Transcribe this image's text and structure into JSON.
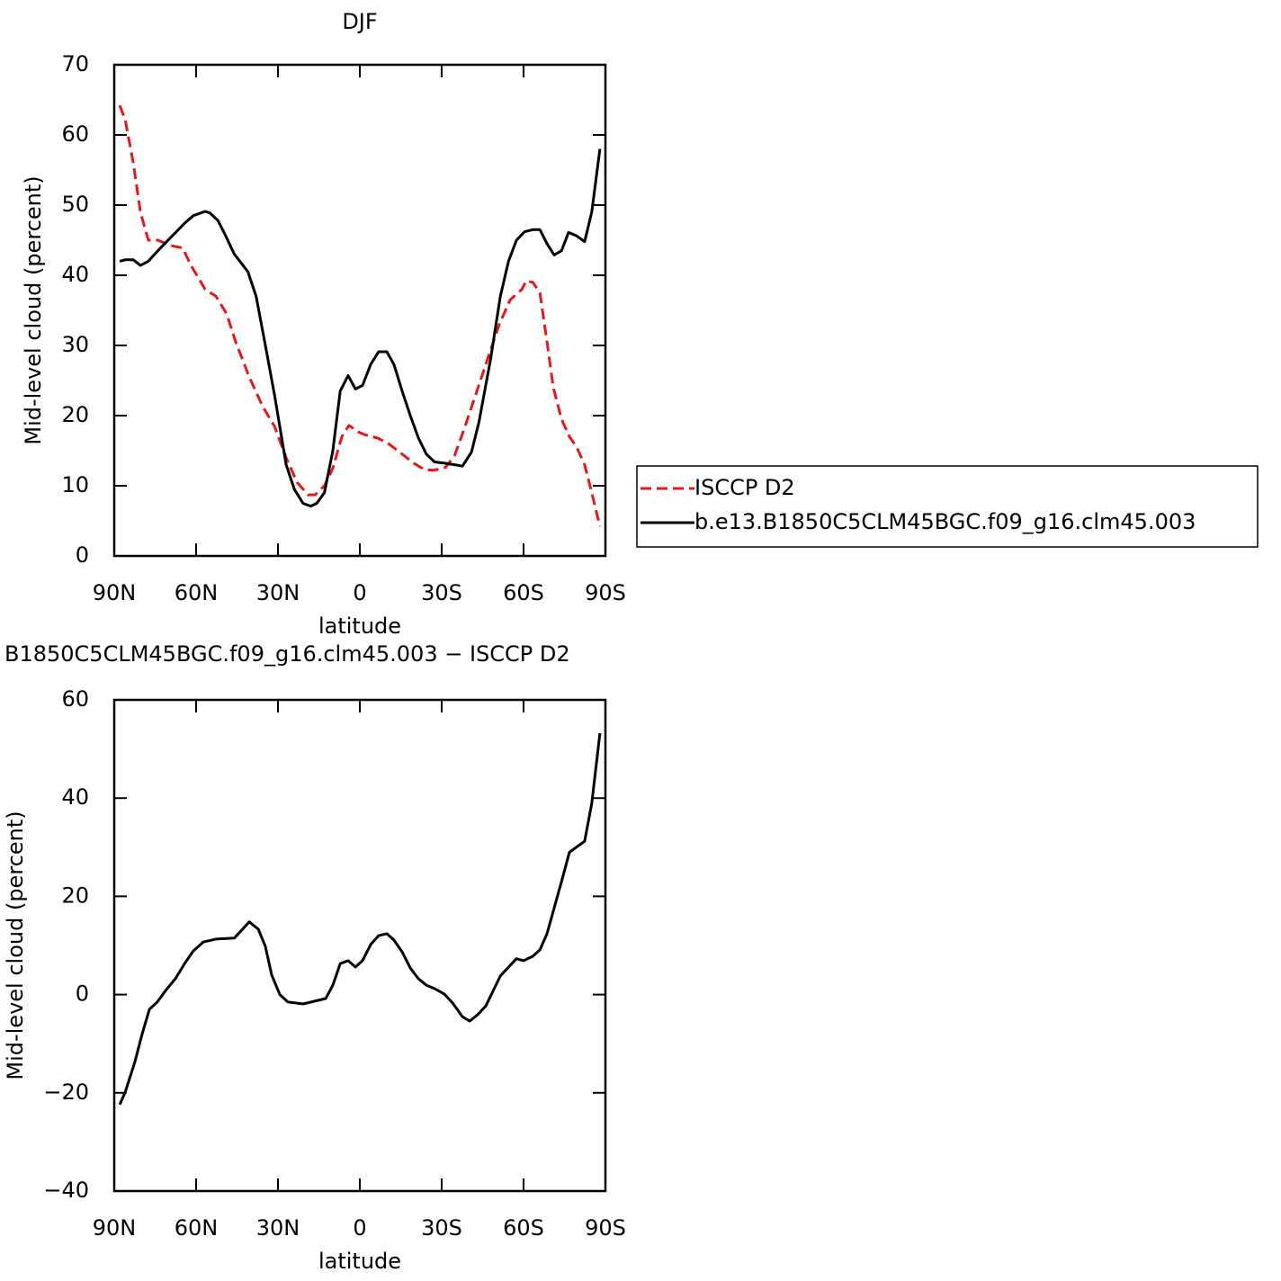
{
  "chart_data": [
    {
      "type": "line",
      "title": "DJF",
      "xlabel": "latitude",
      "ylabel": "Mid-level cloud (percent)",
      "xlim": [
        90,
        -90
      ],
      "ylim": [
        0,
        70
      ],
      "xticks": [
        {
          "value": 90,
          "label": "90N"
        },
        {
          "value": 60,
          "label": "60N"
        },
        {
          "value": 30,
          "label": "30N"
        },
        0,
        {
          "value": -30,
          "label": "30S"
        },
        {
          "value": -60,
          "label": "60S"
        },
        {
          "value": -90,
          "label": "90S"
        }
      ],
      "yticks": [
        0,
        10,
        20,
        30,
        40,
        50,
        60,
        70
      ],
      "legend": "outside-right",
      "series": [
        {
          "name": "ISCCP D2",
          "color": "#e31a1c",
          "style": "dashed",
          "x": [
            88,
            86,
            83,
            80.4,
            77.5,
            74,
            69,
            64.9,
            62,
            56.7,
            52.7,
            48.8,
            45.5,
            40.5,
            35.6,
            31.3,
            27,
            23,
            19,
            16.4,
            13,
            9.9,
            6.6,
            4,
            0.7,
            -1.6,
            -6.6,
            -10.5,
            -15.2,
            -19.8,
            -23.7,
            -27,
            -31.4,
            -34.7,
            -38.6,
            -42.9,
            -47.2,
            -51.1,
            -55.1,
            -59.4,
            -61,
            -63.4,
            -66,
            -68.6,
            -70.9,
            -73.9,
            -76.8,
            -79.5,
            -82.4,
            -85,
            -88
          ],
          "values": [
            64.2,
            62.2,
            56,
            49,
            45,
            45,
            44.2,
            43.9,
            41.5,
            38,
            37,
            34.5,
            30.5,
            25.5,
            21.3,
            18.5,
            14,
            10.5,
            8.7,
            8.7,
            10,
            12.5,
            17,
            18.6,
            17.7,
            17.3,
            16.8,
            16,
            14.6,
            13.2,
            12.3,
            12.2,
            12.6,
            14.3,
            18.5,
            23.5,
            28.5,
            33,
            36.5,
            38,
            39.2,
            39,
            37.5,
            30.5,
            24,
            19.5,
            17,
            15.5,
            13,
            9,
            4.2
          ]
        },
        {
          "name": "b.e13.B1850C5CLM45BGC.f09_g16.clm45.003",
          "color": "#000000",
          "style": "solid",
          "x": [
            88,
            86,
            83,
            80.4,
            77.5,
            74,
            69,
            64,
            61,
            56.7,
            55,
            52,
            49.4,
            46,
            41,
            38,
            34.6,
            31.3,
            27,
            24,
            20.8,
            18,
            15.8,
            13,
            9.9,
            7.2,
            4.3,
            1.6,
            -1,
            -4,
            -6.9,
            -9.9,
            -12.5,
            -15.5,
            -18.5,
            -21.5,
            -24.4,
            -27.4,
            -31.4,
            -34.7,
            -37.6,
            -40.9,
            -43.6,
            -47.9,
            -51.5,
            -54.5,
            -57.4,
            -60.4,
            -63.4,
            -66,
            -68.6,
            -71.2,
            -73.9,
            -76.5,
            -79.5,
            -82.4,
            -85,
            -88
          ],
          "values": [
            42,
            42.2,
            42.2,
            41.4,
            42,
            43.5,
            45.5,
            47.5,
            48.5,
            49.1,
            48.9,
            47.8,
            45.8,
            43,
            40.5,
            37,
            30,
            23,
            13,
            9.5,
            7.5,
            7.1,
            7.5,
            9,
            15,
            23.5,
            25.7,
            23.8,
            24.3,
            27.3,
            29.1,
            29.1,
            27.3,
            23.5,
            20,
            16.8,
            14.5,
            13.4,
            13.2,
            13,
            12.8,
            14.8,
            19,
            28,
            37,
            42,
            45,
            46.2,
            46.5,
            46.5,
            44.5,
            42.9,
            43.5,
            46.1,
            45.6,
            44.8,
            49,
            58
          ]
        }
      ]
    },
    {
      "type": "line",
      "title": "B1850C5CLM45BGC.f09_g16.clm45.003 − ISCCP D2",
      "xlabel": "latitude",
      "ylabel": "Mid-level cloud (percent)",
      "xlim": [
        90,
        -90
      ],
      "ylim": [
        -40,
        60
      ],
      "xticks": [
        {
          "value": 90,
          "label": "90N"
        },
        {
          "value": 60,
          "label": "60N"
        },
        {
          "value": 30,
          "label": "30N"
        },
        0,
        {
          "value": -30,
          "label": "30S"
        },
        {
          "value": -60,
          "label": "60S"
        },
        {
          "value": -90,
          "label": "90S"
        }
      ],
      "yticks": [
        {
          "value": -40,
          "label": "−40"
        },
        {
          "value": -20,
          "label": "−20"
        },
        0,
        20,
        40,
        60
      ],
      "series": [
        {
          "color": "#000000",
          "style": "solid",
          "x": [
            88,
            86,
            82.4,
            79.8,
            77.1,
            74.2,
            70.9,
            67.6,
            64,
            61,
            57.4,
            52.7,
            46,
            40.5,
            37.2,
            34.6,
            32.3,
            29.3,
            26.4,
            20.8,
            12.5,
            9.9,
            7.2,
            4.3,
            1.6,
            -1,
            -4,
            -6.9,
            -9.9,
            -12.5,
            -15.5,
            -18.5,
            -21.5,
            -24.4,
            -27.4,
            -31,
            -34,
            -37.6,
            -40.3,
            -43.2,
            -46.2,
            -51.5,
            -57.4,
            -60,
            -63.4,
            -66,
            -68.6,
            -71.6,
            -74.2,
            -76.8,
            -82.4,
            -85,
            -88
          ],
          "values": [
            -22.4,
            -19.9,
            -13.6,
            -8.1,
            -3,
            -1.5,
            1,
            3.2,
            6.5,
            8.9,
            10.7,
            11.3,
            11.5,
            14.8,
            13.3,
            9.8,
            4,
            0,
            -1.5,
            -1.9,
            -0.8,
            1.9,
            6.3,
            6.9,
            5.6,
            6.9,
            10.2,
            12,
            12.4,
            11.1,
            8.7,
            5.4,
            3.2,
            1.9,
            1.2,
            0.1,
            -1.7,
            -4.5,
            -5.4,
            -4.1,
            -2.3,
            3.8,
            7.3,
            6.9,
            7.8,
            9.1,
            12.4,
            18.4,
            23.6,
            29,
            31.2,
            38.9,
            53.2
          ]
        }
      ]
    }
  ]
}
